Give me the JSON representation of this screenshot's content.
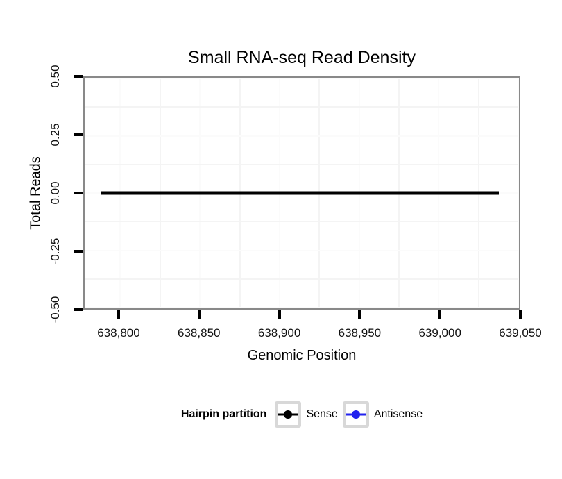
{
  "chart_data": {
    "type": "line",
    "title": "Small RNA-seq Read Density",
    "xlabel": "Genomic Position",
    "ylabel": "Total Reads",
    "x_range": [
      638778,
      639050
    ],
    "y_range": [
      -0.5,
      0.5
    ],
    "x_ticks": {
      "values": [
        638800,
        638850,
        638900,
        638950,
        639000,
        639050
      ],
      "labels": [
        "638,800",
        "638,850",
        "638,900",
        "638,950",
        "639,000",
        "639,050"
      ]
    },
    "y_ticks": {
      "values": [
        0.5,
        0.25,
        0,
        -0.25,
        -0.5
      ],
      "labels": [
        "0.50",
        "0.25",
        "0.00",
        "-0.25",
        "-0.50"
      ]
    },
    "grid": {
      "minor_visible": true,
      "major_color": "#fbfbfb",
      "minor_color": "#f4f4f4"
    },
    "series": [
      {
        "name": "Sense",
        "color": "#000000",
        "x": [
          638788,
          639038
        ],
        "y": [
          0,
          0
        ]
      },
      {
        "name": "Antisense",
        "color": "#2222EE",
        "x": [
          638788,
          639038
        ],
        "y": [
          0,
          0
        ]
      }
    ],
    "legend": {
      "title": "Hairpin partition",
      "position": "bottom",
      "entries": [
        {
          "label": "Sense",
          "color": "#000000"
        },
        {
          "label": "Antisense",
          "color": "#2222EE"
        }
      ]
    }
  },
  "style_colors": {
    "panel_border": "#898989",
    "tick_mark": "#000000",
    "axis_text": "#111111",
    "legend_key_border": "#d8d8d8",
    "background": "#ffffff"
  }
}
